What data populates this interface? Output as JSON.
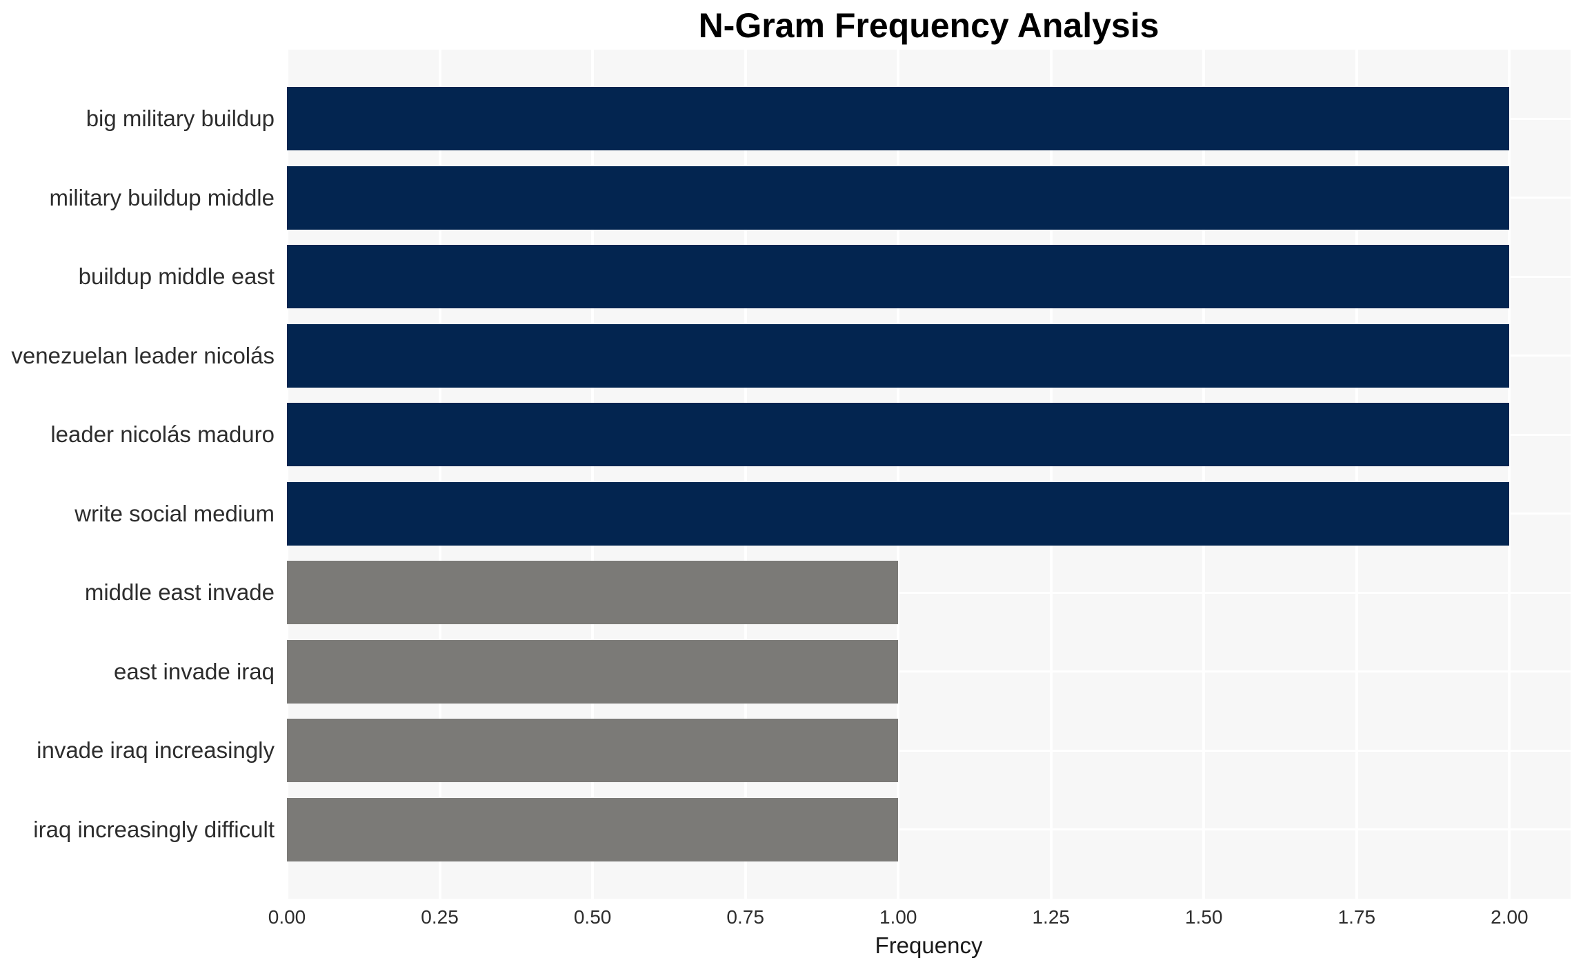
{
  "chart_data": {
    "type": "bar",
    "orientation": "horizontal",
    "title": "N-Gram Frequency Analysis",
    "xlabel": "Frequency",
    "ylabel": "",
    "x_range": [
      0,
      2.1
    ],
    "xticks": [
      0,
      0.25,
      0.5,
      0.75,
      1.0,
      1.25,
      1.5,
      1.75,
      2.0
    ],
    "xtick_labels": [
      "0.00",
      "0.25",
      "0.50",
      "0.75",
      "1.00",
      "1.25",
      "1.50",
      "1.75",
      "2.00"
    ],
    "grid": true,
    "legend": false,
    "categories": [
      "big military buildup",
      "military buildup middle",
      "buildup middle east",
      "venezuelan leader nicolás",
      "leader nicolás maduro",
      "write social medium",
      "middle east invade",
      "east invade iraq",
      "invade iraq increasingly",
      "iraq increasingly difficult"
    ],
    "values": [
      2,
      2,
      2,
      2,
      2,
      2,
      1,
      1,
      1,
      1
    ],
    "bar_colors": [
      "#032550",
      "#032550",
      "#032550",
      "#032550",
      "#032550",
      "#032550",
      "#7b7a77",
      "#7b7a77",
      "#7b7a77",
      "#7b7a77"
    ]
  },
  "style": {
    "bar_color_high_freq": "#032550",
    "bar_color_low_freq": "#7b7a77",
    "plot_background": "#f7f7f7",
    "grid_color": "#ffffff",
    "page_background": "#ffffff",
    "title_color": "#000000",
    "label_color": "#2d2d2d"
  }
}
